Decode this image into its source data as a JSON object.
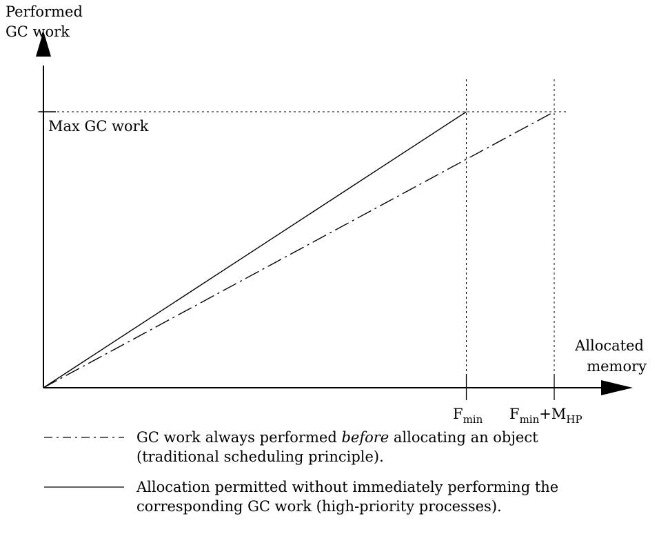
{
  "chart_data": {
    "type": "line",
    "ylabel": [
      "Performed",
      "GC work"
    ],
    "xlabel": [
      "Allocated",
      "memory"
    ],
    "reference_line_label": "Max GC work",
    "x_ticks": [
      {
        "id": "fmin",
        "base": "F",
        "sub": "min"
      },
      {
        "id": "fmin_mhp",
        "base": "F",
        "sub": "min",
        "plus": "+",
        "base2": "M",
        "sub2": "HP"
      }
    ],
    "scale": {
      "x_max": 1.0,
      "y_max": 1.0
    },
    "series": [
      {
        "id": "solid",
        "style": "solid",
        "x": [
          0,
          0.828
        ],
        "y": [
          0,
          1.0
        ]
      },
      {
        "id": "dashdot",
        "style": "dash-dot",
        "x": [
          0,
          1.0
        ],
        "y": [
          0,
          1.0
        ]
      }
    ],
    "guides": {
      "x": [
        0.828,
        1.0
      ],
      "y": [
        1.0
      ]
    }
  },
  "legend": [
    {
      "style": "dash-dot",
      "lines": [
        [
          {
            "t": "GC work always performed "
          },
          {
            "t": "before",
            "i": true
          },
          {
            "t": " allocating an object"
          }
        ],
        [
          {
            "t": "(traditional scheduling principle)."
          }
        ]
      ]
    },
    {
      "style": "solid",
      "lines": [
        [
          {
            "t": "Allocation permitted without immediately performing the"
          }
        ],
        [
          {
            "t": "corresponding GC work (high-priority processes)."
          }
        ]
      ]
    }
  ]
}
